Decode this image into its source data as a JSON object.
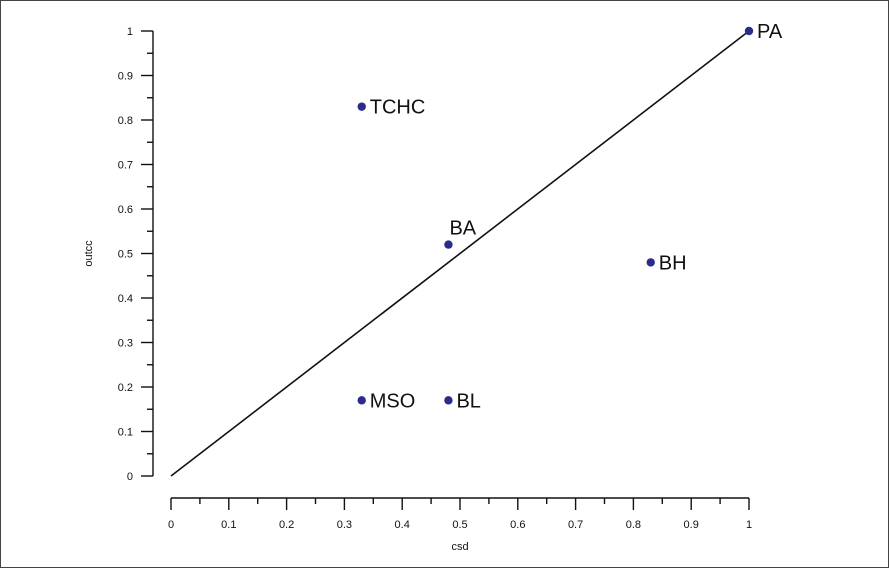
{
  "chart_data": {
    "type": "scatter",
    "xlabel": "csd",
    "ylabel": "outcc",
    "xlim": [
      0,
      1
    ],
    "ylim": [
      0,
      1
    ],
    "x_ticks": [
      "0",
      "0.1",
      "0.2",
      "0.3",
      "0.4",
      "0.5",
      "0.6",
      "0.7",
      "0.8",
      "0.9",
      "1"
    ],
    "y_ticks": [
      "0",
      "0.1",
      "0.2",
      "0.3",
      "0.4",
      "0.5",
      "0.6",
      "0.7",
      "0.8",
      "0.9",
      "1"
    ],
    "points": [
      {
        "label": "PA",
        "x": 1.0,
        "y": 1.0
      },
      {
        "label": "TCHC",
        "x": 0.33,
        "y": 0.83
      },
      {
        "label": "BA",
        "x": 0.48,
        "y": 0.52
      },
      {
        "label": "BH",
        "x": 0.83,
        "y": 0.48
      },
      {
        "label": "MSO",
        "x": 0.33,
        "y": 0.17
      },
      {
        "label": "BL",
        "x": 0.48,
        "y": 0.17
      }
    ],
    "reference_line": {
      "x": [
        0,
        1
      ],
      "y": [
        0,
        1
      ]
    },
    "grid": false,
    "legend": "none",
    "colors": {
      "point": "#2b2b8c",
      "line": "#111111",
      "axis": "#111111"
    }
  }
}
